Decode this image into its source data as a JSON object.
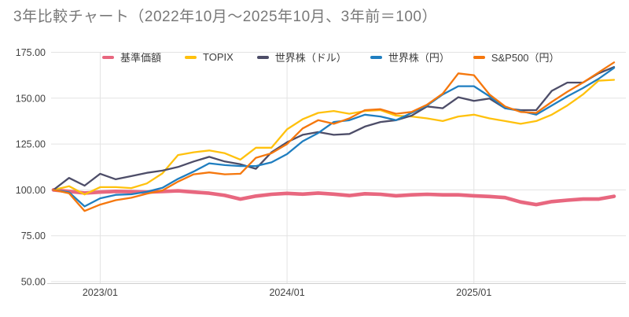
{
  "title": "3年比較チャート（2022年10月～2025年10月、3年前＝100）",
  "colors": {
    "title_text": "#787878",
    "axis_text": "#424242",
    "grid_line": "#e3e3e3",
    "axis_line": "#cfcfcf",
    "background": "#ffffff"
  },
  "chart_data": {
    "type": "line",
    "title": "3年比較チャート（2022年10月～2025年10月、3年前＝100）",
    "xlabel": "",
    "ylabel": "",
    "ylim": [
      50,
      175
    ],
    "yticks": [
      50,
      75,
      100,
      125,
      150,
      175
    ],
    "ytick_labels": [
      "50.00",
      "75.00",
      "100.00",
      "125.00",
      "150.00",
      "175.00"
    ],
    "x_tick_labels": [
      "2023/01",
      "2024/01",
      "2025/01"
    ],
    "x_tick_indices": [
      3,
      15,
      27
    ],
    "grid": "on",
    "legend_position": "top",
    "x": [
      "2022/10",
      "2022/11",
      "2022/12",
      "2023/01",
      "2023/02",
      "2023/03",
      "2023/04",
      "2023/05",
      "2023/06",
      "2023/07",
      "2023/08",
      "2023/09",
      "2023/10",
      "2023/11",
      "2023/12",
      "2024/01",
      "2024/02",
      "2024/03",
      "2024/04",
      "2024/05",
      "2024/06",
      "2024/07",
      "2024/08",
      "2024/09",
      "2024/10",
      "2024/11",
      "2024/12",
      "2025/01",
      "2025/02",
      "2025/03",
      "2025/04",
      "2025/05",
      "2025/06",
      "2025/07",
      "2025/08",
      "2025/09",
      "2025/10"
    ],
    "series": [
      {
        "name": "基準価額",
        "color": "#e8677f",
        "values": [
          100,
          99.2,
          98.3,
          98.8,
          99.2,
          99.0,
          98.8,
          99.1,
          99.5,
          98.8,
          98.2,
          97.0,
          95.0,
          96.6,
          97.6,
          98.1,
          97.7,
          98.3,
          97.7,
          96.9,
          97.9,
          97.6,
          96.8,
          97.3,
          97.6,
          97.3,
          97.3,
          96.8,
          96.4,
          95.8,
          93.4,
          92.0,
          93.6,
          94.4,
          95.0,
          95.0,
          96.5
        ]
      },
      {
        "name": "TOPIX",
        "color": "#ffc10d",
        "values": [
          100,
          102.0,
          97.5,
          101.5,
          101.5,
          101.0,
          103.5,
          109.0,
          119.0,
          120.5,
          121.5,
          120.0,
          116.5,
          123.0,
          123.0,
          133.0,
          138.5,
          142.0,
          143.0,
          141.5,
          143.0,
          143.5,
          140.5,
          140.0,
          139.0,
          137.5,
          140.0,
          141.0,
          139.0,
          137.5,
          136.0,
          137.5,
          141.0,
          146.0,
          152.0,
          159.5,
          160.0
        ]
      },
      {
        "name": "世界株（ドル）",
        "color": "#4d4d68",
        "values": [
          100,
          106.5,
          102.3,
          108.8,
          105.8,
          107.5,
          109.3,
          110.5,
          112.5,
          115.5,
          118.0,
          115.5,
          114.0,
          111.5,
          120.5,
          126.0,
          130.0,
          131.5,
          130.0,
          130.5,
          134.5,
          137.0,
          138.0,
          140.5,
          145.5,
          144.5,
          150.5,
          148.5,
          149.8,
          144.5,
          143.5,
          143.5,
          154.0,
          158.5,
          158.5,
          163.5,
          167.0
        ]
      },
      {
        "name": "世界株（円）",
        "color": "#1f7ec0",
        "values": [
          100,
          98.7,
          91.0,
          95.4,
          97.3,
          97.6,
          99.0,
          101.1,
          106.0,
          110.0,
          114.5,
          113.5,
          113.0,
          113.0,
          115.0,
          119.5,
          126.5,
          131.0,
          137.0,
          138.0,
          141.0,
          140.0,
          138.0,
          142.0,
          146.0,
          152.0,
          156.5,
          156.5,
          151.0,
          144.5,
          143.0,
          141.0,
          146.0,
          151.0,
          155.5,
          160.5,
          166.5
        ]
      },
      {
        "name": "S&P500（円）",
        "color": "#f5770d",
        "values": [
          100,
          98.1,
          88.5,
          92.0,
          94.4,
          95.7,
          97.9,
          99.7,
          104.5,
          108.5,
          109.5,
          108.5,
          108.8,
          117.5,
          120.0,
          125.0,
          133.5,
          138.0,
          136.0,
          139.0,
          143.5,
          144.0,
          141.5,
          142.5,
          146.5,
          152.5,
          163.5,
          162.5,
          152.0,
          145.5,
          142.5,
          142.0,
          148.0,
          153.5,
          158.5,
          164.0,
          169.5
        ]
      }
    ]
  }
}
